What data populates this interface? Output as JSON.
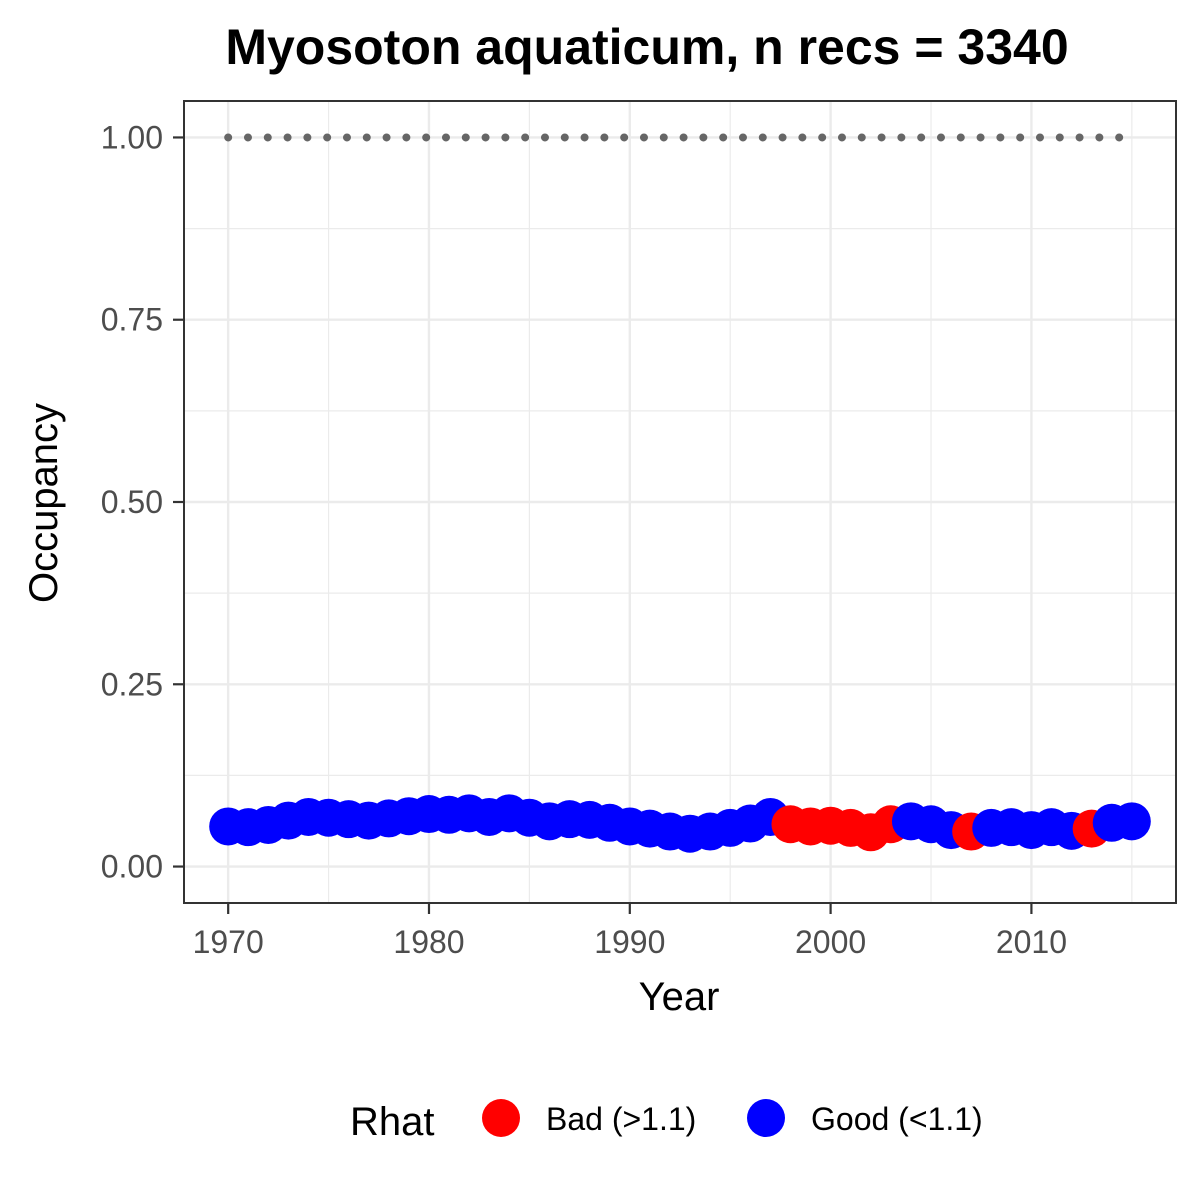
{
  "chart_data": {
    "type": "scatter",
    "title": "Myosoton aquaticum, n recs = 3340",
    "xlabel": "Year",
    "ylabel": "Occupancy",
    "xlim": [
      1967.8,
      2017.2
    ],
    "ylim": [
      -0.05,
      1.05
    ],
    "x_ticks": [
      1970,
      1980,
      1990,
      2000,
      2010
    ],
    "x_tick_labels": [
      "1970",
      "1980",
      "1990",
      "2000",
      "2010"
    ],
    "y_ticks": [
      0,
      0.25,
      0.5,
      0.75,
      1.0
    ],
    "y_tick_labels": [
      "0.00",
      "0.25",
      "0.50",
      "0.75",
      "1.00"
    ],
    "grid": true,
    "reference_line": {
      "y": 1.0,
      "style": "dotted",
      "color": "#666666",
      "x_range": [
        1970,
        2015
      ]
    },
    "legend": {
      "title": "Rhat",
      "position": "bottom",
      "entries": [
        {
          "label": "Bad (>1.1)",
          "color": "#ff0000"
        },
        {
          "label": "Good (<1.1)",
          "color": "#0000ff"
        }
      ]
    },
    "points": [
      {
        "x": 1970,
        "y": 0.055,
        "rhat": "Good (<1.1)"
      },
      {
        "x": 1971,
        "y": 0.054,
        "rhat": "Good (<1.1)"
      },
      {
        "x": 1972,
        "y": 0.057,
        "rhat": "Good (<1.1)"
      },
      {
        "x": 1973,
        "y": 0.063,
        "rhat": "Good (<1.1)"
      },
      {
        "x": 1974,
        "y": 0.068,
        "rhat": "Good (<1.1)"
      },
      {
        "x": 1975,
        "y": 0.067,
        "rhat": "Good (<1.1)"
      },
      {
        "x": 1976,
        "y": 0.065,
        "rhat": "Good (<1.1)"
      },
      {
        "x": 1977,
        "y": 0.063,
        "rhat": "Good (<1.1)"
      },
      {
        "x": 1978,
        "y": 0.066,
        "rhat": "Good (<1.1)"
      },
      {
        "x": 1979,
        "y": 0.069,
        "rhat": "Good (<1.1)"
      },
      {
        "x": 1980,
        "y": 0.072,
        "rhat": "Good (<1.1)"
      },
      {
        "x": 1981,
        "y": 0.071,
        "rhat": "Good (<1.1)"
      },
      {
        "x": 1982,
        "y": 0.073,
        "rhat": "Good (<1.1)"
      },
      {
        "x": 1983,
        "y": 0.068,
        "rhat": "Good (<1.1)"
      },
      {
        "x": 1984,
        "y": 0.073,
        "rhat": "Good (<1.1)"
      },
      {
        "x": 1985,
        "y": 0.067,
        "rhat": "Good (<1.1)"
      },
      {
        "x": 1986,
        "y": 0.062,
        "rhat": "Good (<1.1)"
      },
      {
        "x": 1987,
        "y": 0.065,
        "rhat": "Good (<1.1)"
      },
      {
        "x": 1988,
        "y": 0.064,
        "rhat": "Good (<1.1)"
      },
      {
        "x": 1989,
        "y": 0.06,
        "rhat": "Good (<1.1)"
      },
      {
        "x": 1990,
        "y": 0.055,
        "rhat": "Good (<1.1)"
      },
      {
        "x": 1991,
        "y": 0.052,
        "rhat": "Good (<1.1)"
      },
      {
        "x": 1992,
        "y": 0.048,
        "rhat": "Good (<1.1)"
      },
      {
        "x": 1993,
        "y": 0.045,
        "rhat": "Good (<1.1)"
      },
      {
        "x": 1994,
        "y": 0.048,
        "rhat": "Good (<1.1)"
      },
      {
        "x": 1995,
        "y": 0.053,
        "rhat": "Good (<1.1)"
      },
      {
        "x": 1996,
        "y": 0.059,
        "rhat": "Good (<1.1)"
      },
      {
        "x": 1997,
        "y": 0.068,
        "rhat": "Good (<1.1)"
      },
      {
        "x": 1998,
        "y": 0.058,
        "rhat": "Bad (>1.1)"
      },
      {
        "x": 1999,
        "y": 0.055,
        "rhat": "Bad (>1.1)"
      },
      {
        "x": 2000,
        "y": 0.056,
        "rhat": "Bad (>1.1)"
      },
      {
        "x": 2001,
        "y": 0.053,
        "rhat": "Bad (>1.1)"
      },
      {
        "x": 2002,
        "y": 0.047,
        "rhat": "Bad (>1.1)"
      },
      {
        "x": 2003,
        "y": 0.058,
        "rhat": "Bad (>1.1)"
      },
      {
        "x": 2004,
        "y": 0.062,
        "rhat": "Good (<1.1)"
      },
      {
        "x": 2005,
        "y": 0.058,
        "rhat": "Good (<1.1)"
      },
      {
        "x": 2006,
        "y": 0.05,
        "rhat": "Good (<1.1)"
      },
      {
        "x": 2007,
        "y": 0.048,
        "rhat": "Bad (>1.1)"
      },
      {
        "x": 2008,
        "y": 0.053,
        "rhat": "Good (<1.1)"
      },
      {
        "x": 2009,
        "y": 0.054,
        "rhat": "Good (<1.1)"
      },
      {
        "x": 2010,
        "y": 0.05,
        "rhat": "Good (<1.1)"
      },
      {
        "x": 2011,
        "y": 0.054,
        "rhat": "Good (<1.1)"
      },
      {
        "x": 2012,
        "y": 0.049,
        "rhat": "Good (<1.1)"
      },
      {
        "x": 2013,
        "y": 0.052,
        "rhat": "Bad (>1.1)"
      },
      {
        "x": 2014,
        "y": 0.06,
        "rhat": "Good (<1.1)"
      },
      {
        "x": 2015,
        "y": 0.062,
        "rhat": "Good (<1.1)"
      }
    ]
  }
}
